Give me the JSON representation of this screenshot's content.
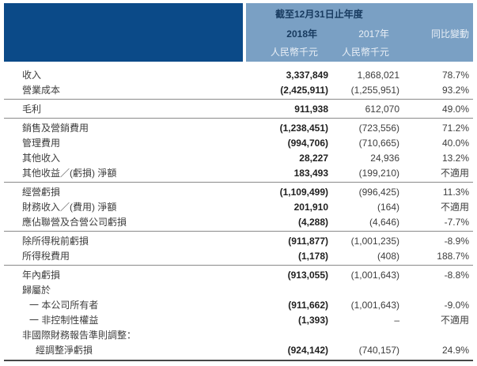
{
  "colors": {
    "dark_blue": "#0b4a88",
    "light_blue": "#7aa0c4",
    "header_dark_text": "#173a5f",
    "header_light_text": "#e9eff6",
    "body_text": "#3d3d3d",
    "bold_text": "#1f1f1f",
    "divider": "#8a8a8a",
    "strong_divider": "#474747"
  },
  "header": {
    "period_label": "截至12月31日止年度",
    "col_2018": "2018年",
    "col_2017": "2017年",
    "col_change": "同比變動",
    "unit_2018": "人民幣千元",
    "unit_2017": "人民幣千元"
  },
  "rows": [
    {
      "label": "收入",
      "y2018": "3,337,849",
      "y2017": "1,868,021",
      "change": "78.7%"
    },
    {
      "label": "營業成本",
      "y2018": "(2,425,911)",
      "y2017": "(1,255,951)",
      "change": "93.2%"
    },
    {
      "label": "毛利",
      "y2018": "911,938",
      "y2017": "612,070",
      "change": "49.0%"
    },
    {
      "label": "銷售及營銷費用",
      "y2018": "(1,238,451)",
      "y2017": "(723,556)",
      "change": "71.2%"
    },
    {
      "label": "管理費用",
      "y2018": "(994,706)",
      "y2017": "(710,665)",
      "change": "40.0%"
    },
    {
      "label": "其他收入",
      "y2018": "28,227",
      "y2017": "24,936",
      "change": "13.2%"
    },
    {
      "label": "其他收益／(虧損) 淨額",
      "y2018": "183,493",
      "y2017": "(199,210)",
      "change": "不適用"
    },
    {
      "label": "經營虧損",
      "y2018": "(1,109,499)",
      "y2017": "(996,425)",
      "change": "11.3%"
    },
    {
      "label": "財務收入／(費用) 淨額",
      "y2018": "201,910",
      "y2017": "(164)",
      "change": "不適用"
    },
    {
      "label": "應佔聯營及合營公司虧損",
      "y2018": "(4,288)",
      "y2017": "(4,646)",
      "change": "-7.7%"
    },
    {
      "label": "除所得稅前虧損",
      "y2018": "(911,877)",
      "y2017": "(1,001,235)",
      "change": "-8.9%"
    },
    {
      "label": "所得稅費用",
      "y2018": "(1,178)",
      "y2017": "(408)",
      "change": "188.7%"
    },
    {
      "label": "年內虧損",
      "y2018": "(913,055)",
      "y2017": "(1,001,643)",
      "change": "-8.8%"
    },
    {
      "label": "歸屬於",
      "y2018": "",
      "y2017": "",
      "change": ""
    },
    {
      "label": "一 本公司所有者",
      "y2018": "(911,662)",
      "y2017": "(1,001,643)",
      "change": "-9.0%"
    },
    {
      "label": "一 非控制性權益",
      "y2018": "(1,393)",
      "y2017": "–",
      "change": "不適用"
    },
    {
      "label": "非國際財務報告準則調整：",
      "y2018": "",
      "y2017": "",
      "change": ""
    },
    {
      "label": "經調整淨虧損",
      "y2018": "(924,142)",
      "y2017": "(740,157)",
      "change": "24.9%"
    }
  ]
}
